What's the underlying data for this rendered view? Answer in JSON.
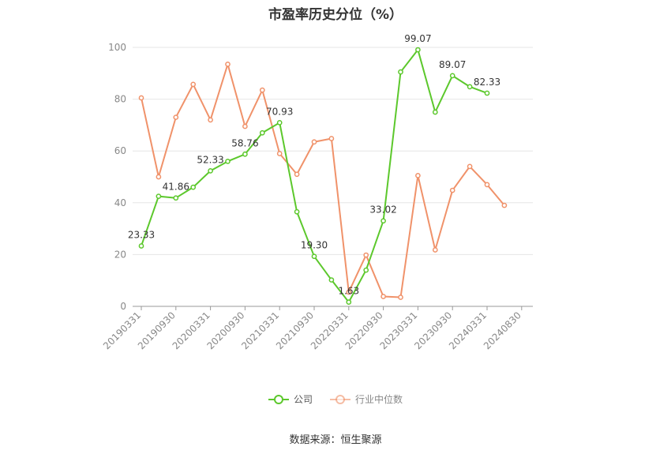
{
  "chart_data": {
    "type": "line",
    "title": "市盈率历史分位（%）",
    "xlabel": "",
    "ylabel": "",
    "ylim": [
      0,
      100
    ],
    "yticks": [
      0,
      20,
      40,
      60,
      80,
      100
    ],
    "x": [
      "20190331",
      "20190630",
      "20190930",
      "20191231",
      "20200331",
      "20200630",
      "20200930",
      "20201231",
      "20210331",
      "20210630",
      "20210930",
      "20211231",
      "20220331",
      "20220630",
      "20220930",
      "20221231",
      "20230331",
      "20230630",
      "20230930",
      "20231231",
      "20240331",
      "20240630"
    ],
    "xtick_labels": [
      "20190331",
      "20190930",
      "20200331",
      "20200930",
      "20210331",
      "20210930",
      "20220331",
      "20220930",
      "20230331",
      "20230930",
      "20240331",
      "20240830"
    ],
    "series": [
      {
        "name": "公司",
        "color": "#5cc82c",
        "values": [
          23.33,
          42.5,
          41.86,
          46.0,
          52.33,
          56.0,
          58.76,
          67.0,
          70.93,
          36.5,
          19.3,
          10.2,
          1.63,
          14.0,
          33.02,
          90.5,
          99.07,
          75.0,
          89.07,
          84.8,
          82.33,
          null
        ],
        "labels": {
          "0": "23.33",
          "2": "41.86",
          "4": "52.33",
          "6": "58.76",
          "8": "70.93",
          "10": "19.30",
          "12": "1.63",
          "14": "33.02",
          "16": "99.07",
          "18": "89.07",
          "20": "82.33"
        }
      },
      {
        "name": "行业中位数",
        "color": "#f0926a",
        "values": [
          80.5,
          50.0,
          73.0,
          85.7,
          72.0,
          93.5,
          69.5,
          83.5,
          59.0,
          51.0,
          63.5,
          64.8,
          5.5,
          19.8,
          3.8,
          3.5,
          50.5,
          21.8,
          44.8,
          54.0,
          47.0,
          39.0
        ]
      }
    ],
    "legend_position": "bottom-center",
    "grid": true
  },
  "footer": {
    "source": "数据来源：恒生聚源"
  }
}
